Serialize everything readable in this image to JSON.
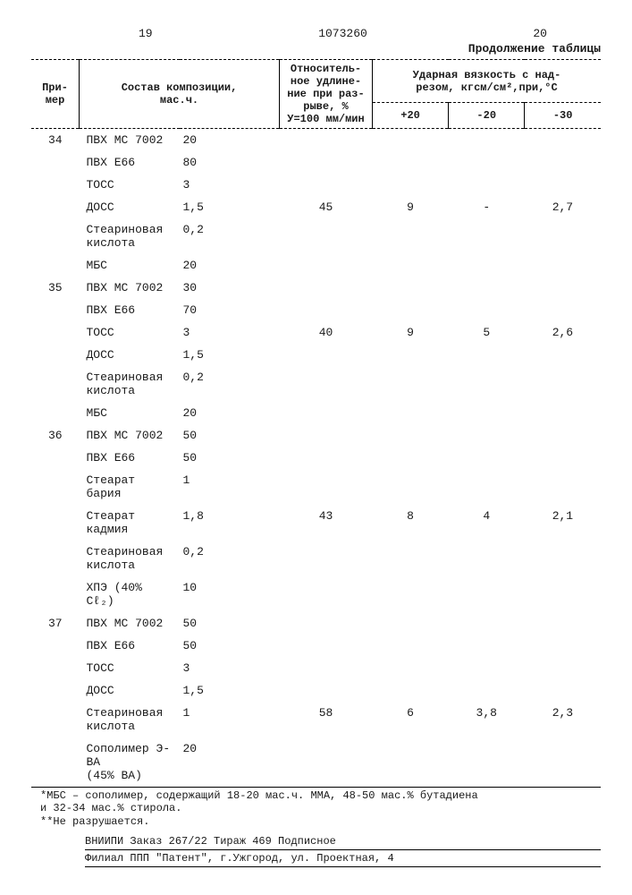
{
  "header": {
    "page_left": "19",
    "doc_number": "1073260",
    "page_right": "20",
    "continuation": "Продолжение таблицы"
  },
  "columns": {
    "example": "При-\nмер",
    "composition": "Состав композиции,\nмас.ч.",
    "elongation": "Относитель-\nное удлине-\nние при раз-\nрыве, %\nУ=100 мм/мин",
    "impact_header": "Ударная вязкость с над-\nрезом, кгсм/см²,при,°С",
    "t1": "+20",
    "t2": "-20",
    "t3": "-30"
  },
  "groups": [
    {
      "example": "34",
      "rows": [
        {
          "name": "ПВХ МС 7002",
          "val": "20"
        },
        {
          "name": "ПВХ Е66",
          "val": "80"
        },
        {
          "name": "ТОСС",
          "val": "3"
        },
        {
          "name": "ДОСС",
          "val": "1,5",
          "elong": "45",
          "t1": "9",
          "t2": "-",
          "t3": "2,7"
        },
        {
          "name": "Стеариновая\nкислота",
          "val": "0,2"
        },
        {
          "name": "МБС",
          "val": "20"
        }
      ]
    },
    {
      "example": "35",
      "rows": [
        {
          "name": "ПВХ МС 7002",
          "val": "30"
        },
        {
          "name": "ПВХ Е66",
          "val": "70"
        },
        {
          "name": "ТОСС",
          "val": "3",
          "elong": "40",
          "t1": "9",
          "t2": "5",
          "t3": "2,6"
        },
        {
          "name": "ДОСС",
          "val": "1,5"
        },
        {
          "name": "Стеариновая\nкислота",
          "val": "0,2"
        },
        {
          "name": "МБС",
          "val": "20"
        }
      ]
    },
    {
      "example": "36",
      "rows": [
        {
          "name": "ПВХ МС 7002",
          "val": "50"
        },
        {
          "name": "ПВХ Е66",
          "val": "50"
        },
        {
          "name": "Стеарат бария",
          "val": "1"
        },
        {
          "name": "Стеарат кадмия",
          "val": "1,8",
          "elong": "43",
          "t1": "8",
          "t2": "4",
          "t3": "2,1"
        },
        {
          "name": "Стеариновая\nкислота",
          "val": "0,2"
        },
        {
          "name": "ХПЭ (40% Cℓ₂)",
          "val": "10"
        }
      ]
    },
    {
      "example": "37",
      "rows": [
        {
          "name": "ПВХ МС 7002",
          "val": "50"
        },
        {
          "name": "ПВХ Е66",
          "val": "50"
        },
        {
          "name": "ТОСС",
          "val": "3"
        },
        {
          "name": "ДОСС",
          "val": "1,5"
        },
        {
          "name": "Стеариновая\nкислота",
          "val": "1",
          "elong": "58",
          "t1": "6",
          "t2": "3,8",
          "t3": "2,3"
        },
        {
          "name": "Сополимер Э-ВА\n(45% ВА)",
          "val": "20"
        }
      ]
    }
  ],
  "footnotes": {
    "f1": "*МБС – сополимер, содержащий 18-20 мас.ч. ММА, 48-50 мас.% бутадиена\n  и 32-34 мас.% стирола.",
    "f2": "**Не разрушается."
  },
  "publication": {
    "line1": "ВНИИПИ    Заказ 267/22    Тираж 469    Подписное",
    "line2": "Филиал ППП \"Патент\", г.Ужгород, ул. Проектная, 4"
  }
}
